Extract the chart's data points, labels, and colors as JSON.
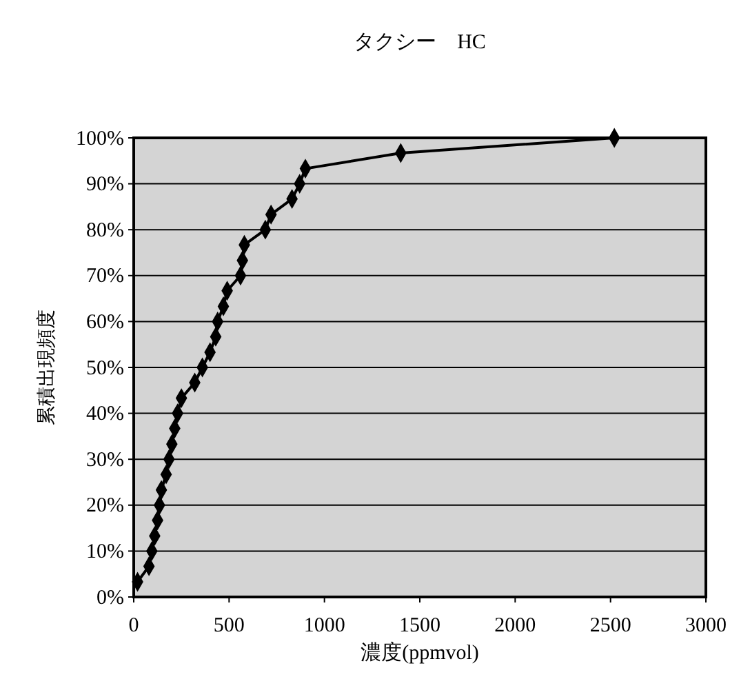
{
  "chart_data": {
    "type": "line",
    "title": "タクシー　HC",
    "xlabel": "濃度(ppmvol)",
    "ylabel": "累積出現頻度",
    "x": [
      20,
      80,
      95,
      110,
      125,
      135,
      145,
      170,
      185,
      200,
      215,
      230,
      250,
      320,
      360,
      400,
      430,
      440,
      470,
      490,
      560,
      570,
      580,
      690,
      720,
      830,
      870,
      900,
      1400,
      2520
    ],
    "series": [
      {
        "color": "#000000",
        "values": [
          3.3,
          6.7,
          10,
          13.3,
          16.7,
          20,
          23.3,
          26.7,
          30,
          33.3,
          36.7,
          40,
          43.3,
          46.7,
          50,
          53.3,
          56.7,
          60,
          63.3,
          66.7,
          70,
          73.3,
          76.7,
          80,
          83.3,
          86.7,
          90,
          93.3,
          96.7,
          100
        ]
      }
    ],
    "xlim": [
      0,
      3000
    ],
    "xticks": [
      0,
      500,
      1000,
      1500,
      2000,
      2500,
      3000
    ],
    "ylim": [
      0,
      100
    ],
    "yticks": [
      {
        "value": 0,
        "label": "0%"
      },
      {
        "value": 10,
        "label": "10%"
      },
      {
        "value": 20,
        "label": "20%"
      },
      {
        "value": 30,
        "label": "30%"
      },
      {
        "value": 40,
        "label": "40%"
      },
      {
        "value": 50,
        "label": "50%"
      },
      {
        "value": 60,
        "label": "60%"
      },
      {
        "value": 70,
        "label": "70%"
      },
      {
        "value": 80,
        "label": "80%"
      },
      {
        "value": 90,
        "label": "90%"
      },
      {
        "value": 100,
        "label": "100%"
      }
    ],
    "grid": "y",
    "marker": "diamond",
    "line_style": "solid"
  }
}
